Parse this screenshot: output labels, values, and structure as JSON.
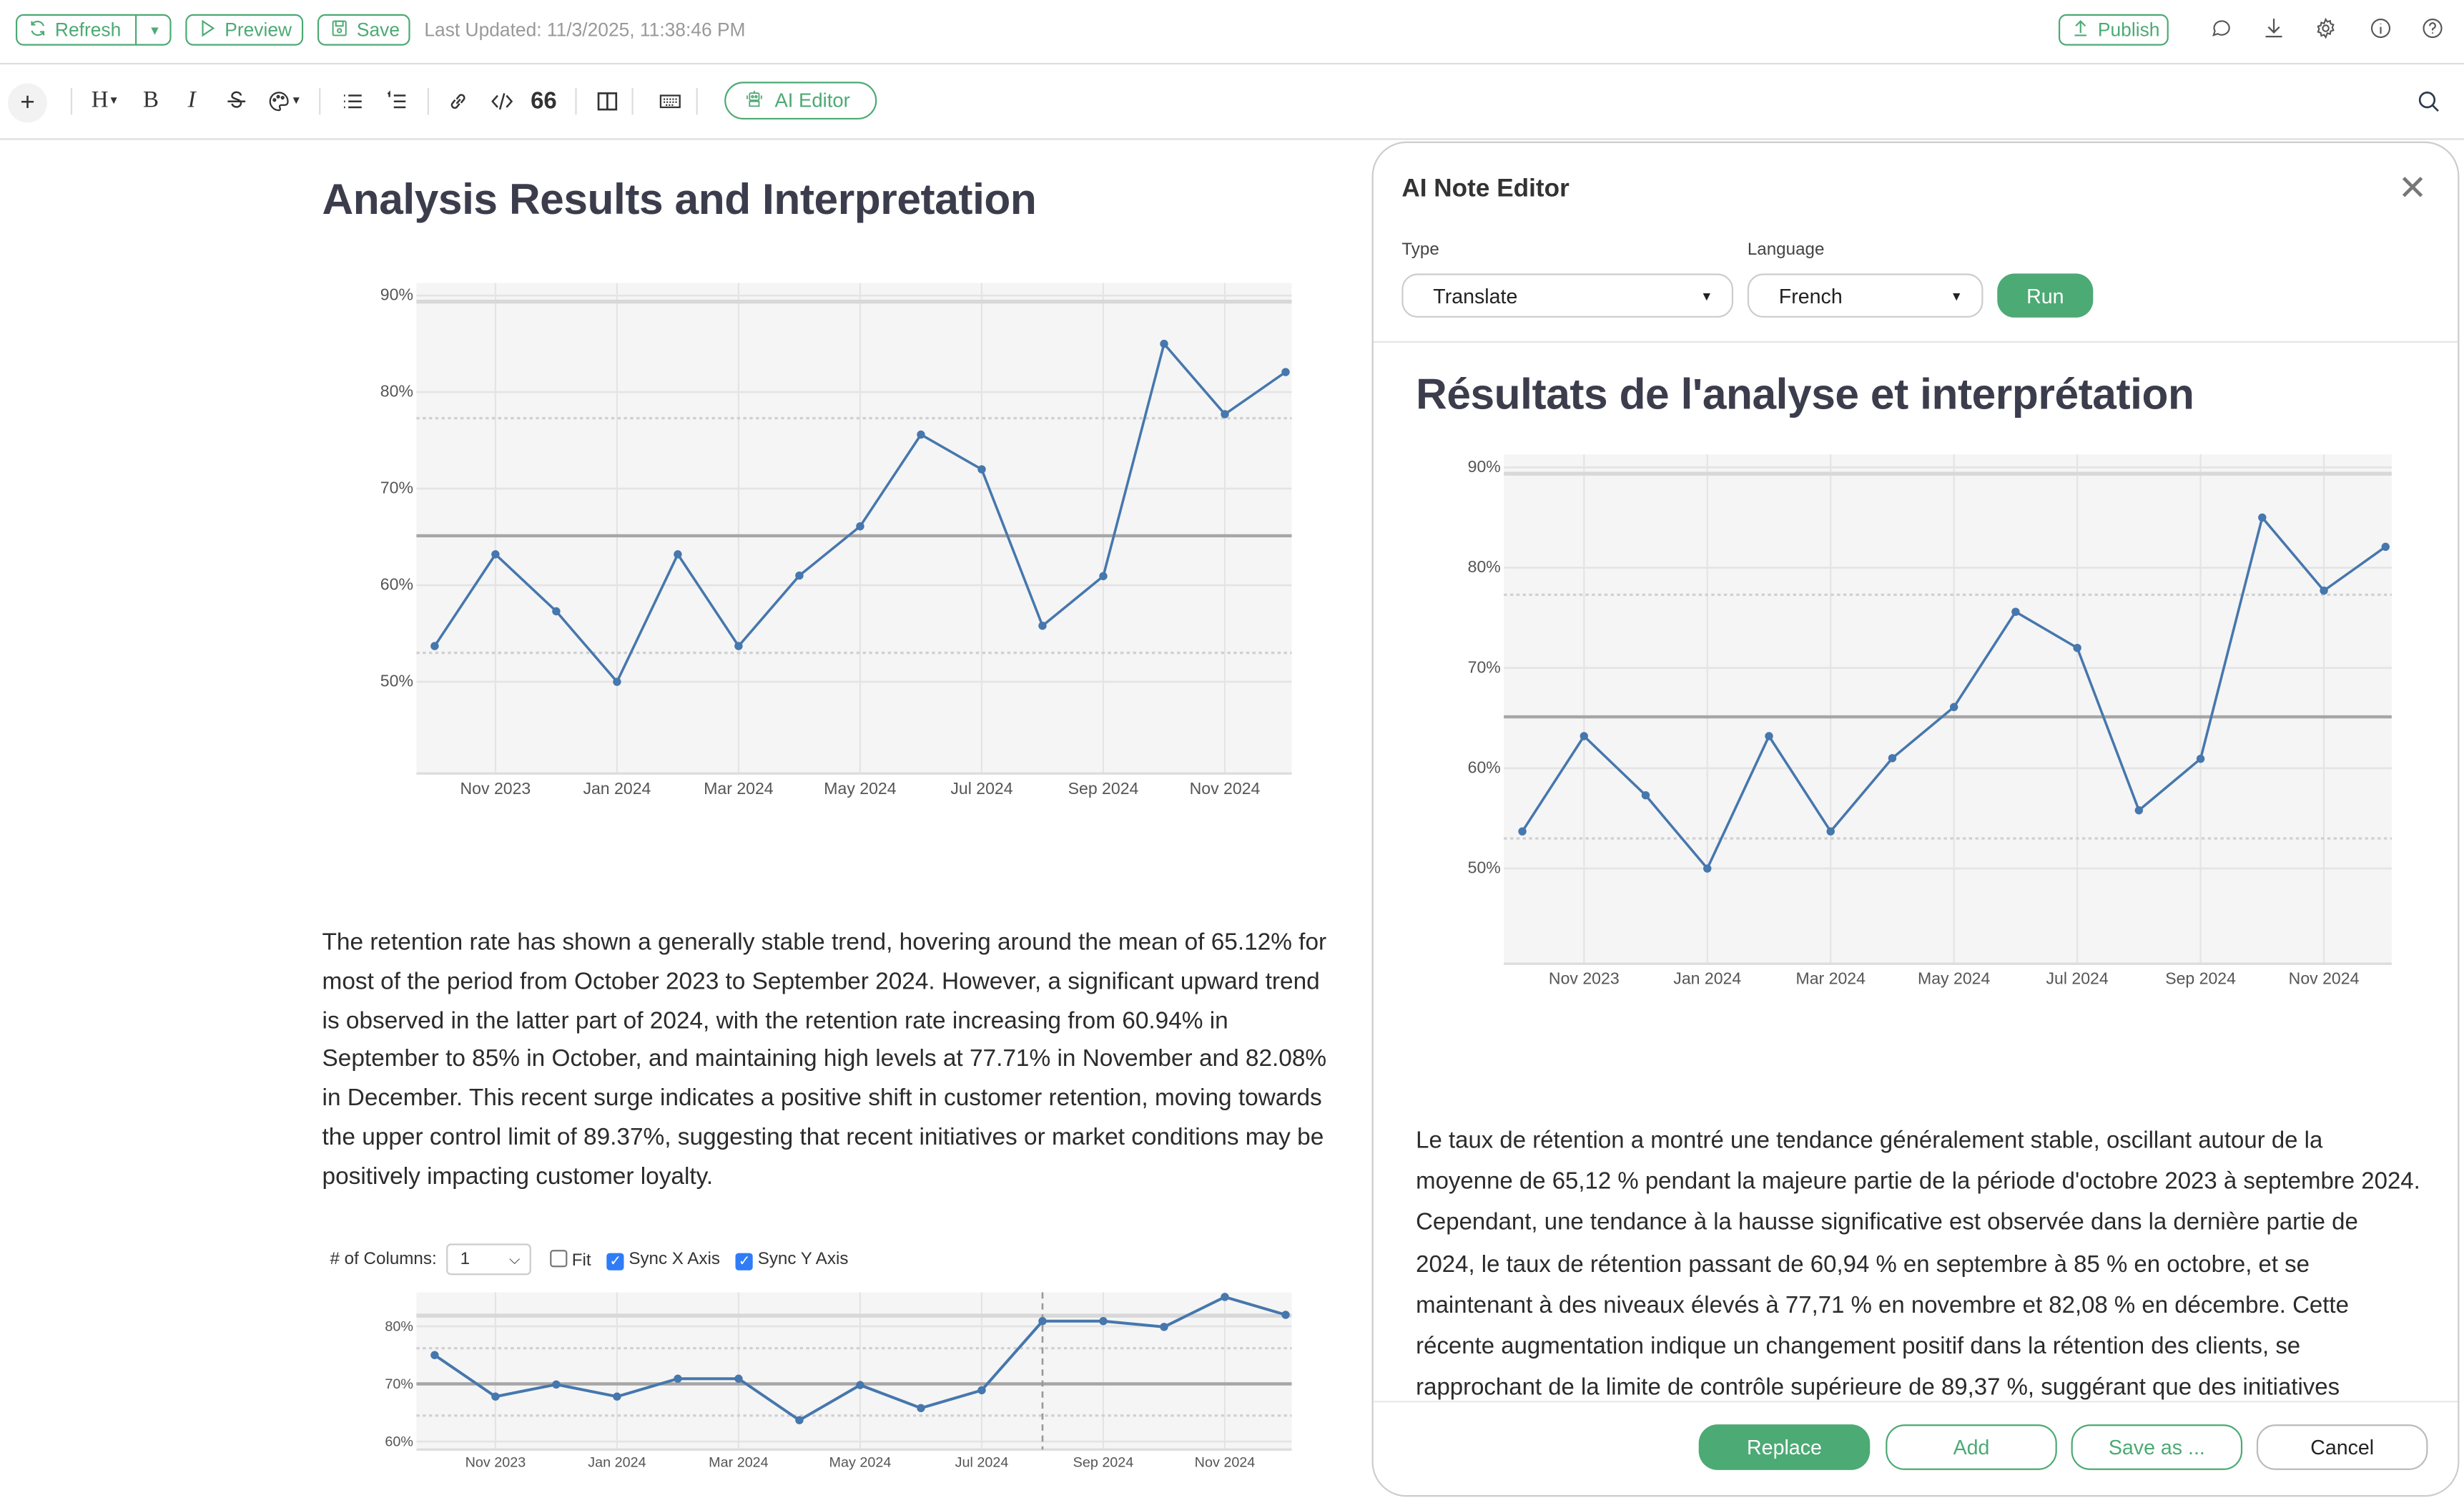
{
  "topbar": {
    "refresh_label": "Refresh",
    "preview_label": "Preview",
    "save_label": "Save",
    "last_updated": "Last Updated: 11/3/2025, 11:38:46 PM",
    "publish_label": "Publish"
  },
  "toolbar": {
    "heading_glyph": "H",
    "bold_glyph": "B",
    "italic_glyph": "I",
    "ai_editor_label": "AI Editor"
  },
  "document": {
    "title": "Analysis Results and Interpretation",
    "paragraph": "The retention rate has shown a generally stable trend, hovering around the mean of 65.12% for most of the period from October 2023 to September 2024. However, a significant upward trend is observed in the latter part of 2024, with the retention rate increasing from 60.94% in September to 85% in October, and maintaining high levels at 77.71% in November and 82.08% in December. This recent surge indicates a positive shift in customer retention, moving towards the upper control limit of 89.37%, suggesting that recent initiatives or market conditions may be positively impacting customer loyalty.",
    "controls": {
      "columns_label": "# of Columns:",
      "columns_value": "1",
      "fit_label": "Fit",
      "fit_checked": false,
      "sync_x_label": "Sync X Axis",
      "sync_x_checked": true,
      "sync_y_label": "Sync Y Axis",
      "sync_y_checked": true
    }
  },
  "ai_panel": {
    "title": "AI Note Editor",
    "type_label": "Type",
    "type_value": "Translate",
    "language_label": "Language",
    "language_value": "French",
    "run_label": "Run",
    "result_title": "Résultats de l'analyse et interprétation",
    "result_paragraph": "Le taux de rétention a montré une tendance généralement stable, oscillant autour de la moyenne de 65,12 % pendant la majeure partie de la période d'octobre 2023 à septembre 2024. Cependant, une tendance à la hausse significative est observée dans la dernière partie de 2024, le taux de rétention passant de 60,94 % en septembre à 85 % en octobre, et se maintenant à des niveaux élevés à 77,71 % en novembre et 82,08 % en décembre. Cette récente augmentation indique un changement positif dans la rétention des clients, se rapprochant de la limite de contrôle supérieure de 89,37 %, suggérant que des initiatives récentes ou des conditions de marché pourraient avoir un impact positif sur la fidélité des clients.",
    "replace_label": "Replace",
    "add_label": "Add",
    "save_as_label": "Save as ...",
    "cancel_label": "Cancel"
  },
  "colors": {
    "accent": "#4caa74",
    "line": "#4677ad",
    "checkbox": "#2f7cf6"
  },
  "chart_data": [
    {
      "type": "line",
      "title": "",
      "x": [
        "2023-10",
        "2023-11",
        "2023-12",
        "2024-01",
        "2024-02",
        "2024-03",
        "2024-04",
        "2024-05",
        "2024-06",
        "2024-07",
        "2024-08",
        "2024-09",
        "2024-10",
        "2024-11",
        "2024-12"
      ],
      "x_tick_labels": [
        "Nov 2023",
        "Jan 2024",
        "Mar 2024",
        "May 2024",
        "Jul 2024",
        "Sep 2024",
        "Nov 2024"
      ],
      "x_tick_index": [
        1,
        3,
        5,
        7,
        9,
        11,
        13
      ],
      "y_tick_values": [
        50,
        60,
        70,
        80,
        90
      ],
      "y_tick_labels": [
        "50%",
        "60%",
        "70%",
        "80%",
        "90%"
      ],
      "series": [
        {
          "name": "Retention Rate",
          "values": [
            53.7,
            63.2,
            57.3,
            50.0,
            63.2,
            53.7,
            61.0,
            66.1,
            75.6,
            72.0,
            55.8,
            60.94,
            85.0,
            77.71,
            82.08
          ]
        }
      ],
      "center_line": 65.12,
      "upper_limit": 89.37,
      "lower_limit": 40.87,
      "sigma_lines": [
        77.3,
        53.0
      ],
      "ylim": [
        40.5,
        91.3
      ],
      "xlabel": "",
      "ylabel": "",
      "grid": true
    },
    {
      "type": "line",
      "title": "",
      "x": [
        "2023-10",
        "2023-11",
        "2023-12",
        "2024-01",
        "2024-02",
        "2024-03",
        "2024-04",
        "2024-05",
        "2024-06",
        "2024-07",
        "2024-08",
        "2024-09",
        "2024-10",
        "2024-11",
        "2024-12"
      ],
      "x_tick_labels": [
        "Nov 2023",
        "Jan 2024",
        "Mar 2024",
        "May 2024",
        "Jul 2024",
        "Sep 2024",
        "Nov 2024"
      ],
      "x_tick_index": [
        1,
        3,
        5,
        7,
        9,
        11,
        13
      ],
      "y_tick_values": [
        60,
        70,
        80
      ],
      "y_tick_labels": [
        "60%",
        "70%",
        "80%"
      ],
      "series": [
        {
          "name": "Retention Rate",
          "values": [
            75.0,
            67.8,
            69.9,
            67.8,
            70.9,
            70.9,
            63.7,
            69.8,
            65.8,
            68.9,
            80.9,
            80.9,
            79.9,
            85.1,
            82.0
          ]
        }
      ],
      "center_line": 70.0,
      "upper_limit": 81.85,
      "sigma_lines": [
        76.2,
        64.5
      ],
      "marker_index": 10,
      "ylim": [
        58.6,
        85.9
      ],
      "xlabel": "",
      "ylabel": "",
      "grid": true
    }
  ]
}
